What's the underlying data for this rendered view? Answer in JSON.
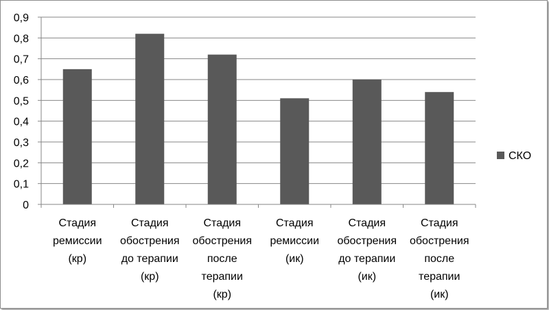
{
  "chart_data": {
    "type": "bar",
    "categories": [
      [
        "Стадия",
        "ремиссии",
        "(кр)"
      ],
      [
        "Стадия",
        "обострения",
        "до терапии",
        "(кр)"
      ],
      [
        "Стадия",
        "обострения",
        "после",
        "терапии",
        "(кр)"
      ],
      [
        "Стадия",
        "ремиссии",
        "(ик)"
      ],
      [
        "Стадия",
        "обострения",
        "до терапии",
        "(ик)"
      ],
      [
        "Стадия",
        "обострения",
        "после",
        "терапии",
        "(ик)"
      ]
    ],
    "series": [
      {
        "name": "СКО",
        "values": [
          0.65,
          0.82,
          0.72,
          0.51,
          0.6,
          0.54
        ],
        "color": "#595959"
      }
    ],
    "ylim": [
      0,
      0.9
    ],
    "yticks": [
      "0",
      "0,1",
      "0,2",
      "0,3",
      "0,4",
      "0,5",
      "0,6",
      "0,7",
      "0,8",
      "0,9"
    ],
    "grid": true,
    "legend": "right"
  }
}
